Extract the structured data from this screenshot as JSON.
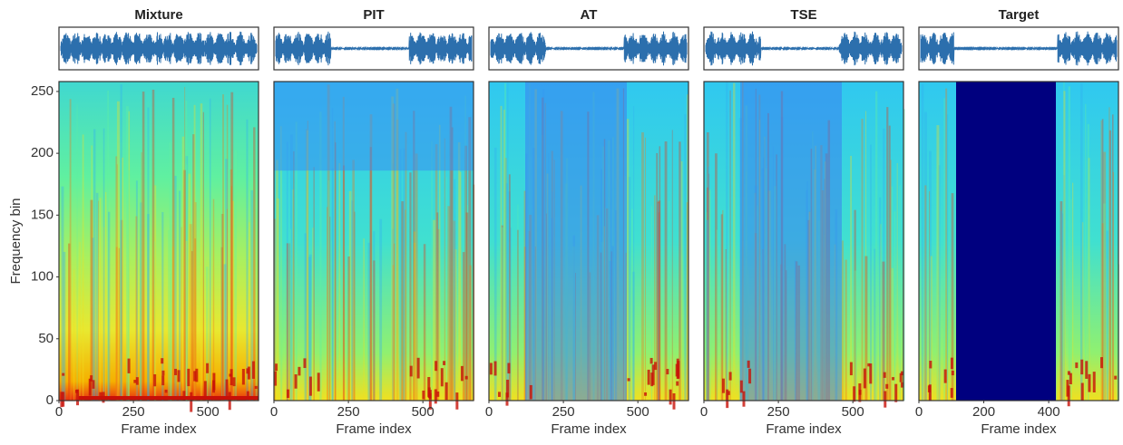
{
  "chart_data": [
    {
      "type": "spectrogram",
      "title": "Mixture",
      "xlabel": "Frame index",
      "ylabel": "Frequency bin",
      "xlim": [
        0,
        670
      ],
      "ylim": [
        0,
        258
      ],
      "xticks": [
        0,
        250,
        500
      ],
      "yticks": [
        0,
        50,
        100,
        150,
        200,
        250
      ]
    },
    {
      "type": "spectrogram",
      "title": "PIT",
      "xlabel": "Frame index",
      "xlim": [
        0,
        670
      ],
      "ylim": [
        0,
        258
      ],
      "xticks": [
        0,
        250,
        500
      ]
    },
    {
      "type": "spectrogram",
      "title": "AT",
      "xlabel": "Frame index",
      "xlim": [
        0,
        670
      ],
      "ylim": [
        0,
        258
      ],
      "xticks": [
        0,
        250,
        500
      ]
    },
    {
      "type": "spectrogram",
      "title": "TSE",
      "xlabel": "Frame index",
      "xlim": [
        0,
        670
      ],
      "ylim": [
        0,
        258
      ],
      "xticks": [
        0,
        250,
        500
      ]
    },
    {
      "type": "spectrogram",
      "title": "Target",
      "xlabel": "Frame index",
      "xlim": [
        0,
        615
      ],
      "ylim": [
        0,
        258
      ],
      "xticks": [
        0,
        200,
        400
      ]
    }
  ]
}
